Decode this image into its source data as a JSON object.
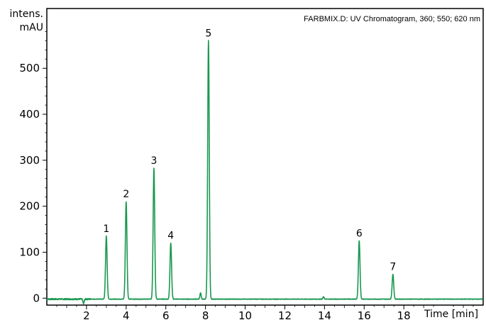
{
  "chart_data": {
    "type": "line",
    "title": "FARBMIX.D: UV Chromatogram, 360; 550; 620 nm",
    "ylabel_line1": "intens.",
    "ylabel_line2": "mAU",
    "xlabel": "Time [min]",
    "xlim": [
      0,
      22
    ],
    "ylim": [
      -15,
      630
    ],
    "grid": false,
    "legend": "none",
    "line_color": "#1a9850",
    "x_ticks": [
      2,
      4,
      6,
      8,
      10,
      12,
      14,
      16,
      18
    ],
    "x_tick_labels": [
      "2",
      "4",
      "6",
      "8",
      "10",
      "12",
      "14",
      "16",
      "18"
    ],
    "y_ticks": [
      0,
      100,
      200,
      300,
      400,
      500
    ],
    "y_tick_labels": [
      "0",
      "100",
      "200",
      "300",
      "400",
      "500"
    ],
    "peaks": [
      {
        "label": "1",
        "x": 3.0,
        "y": 135
      },
      {
        "label": "2",
        "x": 4.0,
        "y": 210
      },
      {
        "label": "3",
        "x": 5.4,
        "y": 283
      },
      {
        "label": "4",
        "x": 6.25,
        "y": 120
      },
      {
        "label": "5",
        "x": 8.15,
        "y": 560
      },
      {
        "label": "6",
        "x": 15.75,
        "y": 125
      },
      {
        "label": "7",
        "x": 17.45,
        "y": 52
      }
    ],
    "minor_features": [
      {
        "x": 1.85,
        "y": -12
      },
      {
        "x": 7.75,
        "y": 12
      },
      {
        "x": 13.95,
        "y": 3
      }
    ],
    "baseline": -2
  }
}
